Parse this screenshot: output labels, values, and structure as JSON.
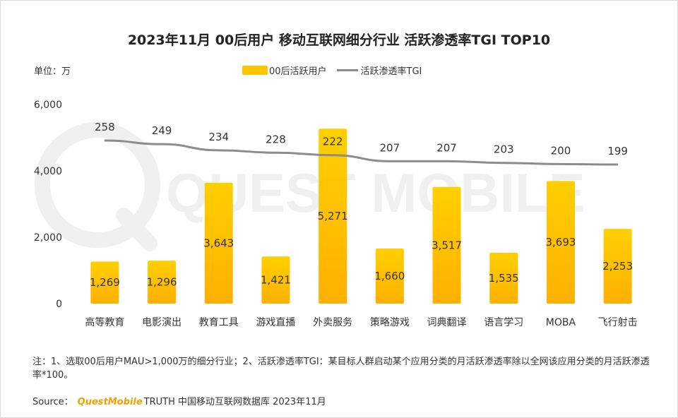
{
  "title": "2023年11月 00后用户 移动互联网细分行业 活跃渗透率TGI TOP10",
  "unit_label": "单位：万",
  "legend": {
    "bar": "00后活跃用户",
    "line": "活跃渗透率TGI"
  },
  "watermark": "QUEST MOBILE",
  "colors": {
    "bar_top": "#ffd000",
    "bar_bottom": "#ffb000",
    "line": "#8c8c8c",
    "watermark": "#f0f0f0"
  },
  "chart_data": {
    "type": "bar",
    "categories": [
      "高等教育",
      "电影演出",
      "教育工具",
      "游戏直播",
      "外卖服务",
      "策略游戏",
      "词典翻译",
      "语言学习",
      "MOBA",
      "飞行射击"
    ],
    "series": [
      {
        "name": "00后活跃用户",
        "type": "bar",
        "values": [
          1269,
          1296,
          3643,
          1421,
          5271,
          1660,
          3517,
          1535,
          3693,
          2253
        ],
        "labels": [
          "1,269",
          "1,296",
          "3,643",
          "1,421",
          "5,271",
          "1,660",
          "3,517",
          "1,535",
          "3,693",
          "2,253"
        ]
      },
      {
        "name": "活跃渗透率TGI",
        "type": "line",
        "values": [
          258,
          249,
          234,
          228,
          222,
          207,
          207,
          203,
          200,
          199
        ]
      }
    ],
    "yaxis": {
      "ticks": [
        0,
        2000,
        4000,
        6000
      ],
      "tick_labels": [
        "0",
        "2,000",
        "4,000",
        "6,000"
      ],
      "ylim": [
        0,
        6000
      ]
    },
    "legend_position": "top-center",
    "grid": false
  },
  "note": "注：1、选取00后用户MAU>1,000万的细分行业；2、活跃渗透率TGI：某目标人群启动某个应用分类的月活跃渗透率除以全网该应用分类的月活跃渗透率*100。",
  "source": {
    "label": "Source：",
    "brand": "QuestMobile",
    "text": "TRUTH 中国移动互联网数据库 2023年11月"
  }
}
